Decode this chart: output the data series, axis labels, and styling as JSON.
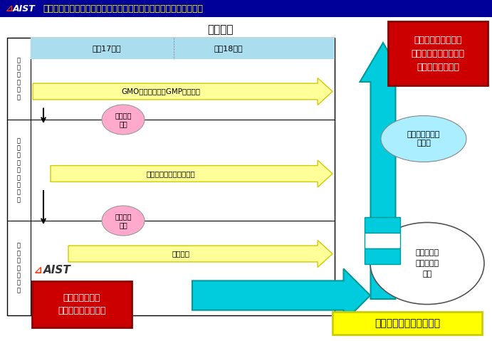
{
  "title_bar_color": "#000099",
  "title_text": "「医薬製剤原料生産のための密閉型組換え植物工場の開発」（２）",
  "title_text_color": "#FFFF00",
  "main_title": "研究計画",
  "bg_color": "#FFFFFF",
  "year_label1": "平成17年度",
  "year_label2": "平成18年度",
  "arrow1_text": "GMO封じ込め　　GMP基準対応",
  "arrow2_text": "人工環境下での育成技術",
  "arrow3_text": "実証試験",
  "ellipse1_text": "企業資金\n導入",
  "ellipse2_text": "企業資金\n導入",
  "red_box_text": "産総研産業変革\n研究イニシアティブ",
  "nat_label": "ナショナルプロジェクト",
  "red_box2_text": "植物機能を活用した\nものづくり産業の創出\n（産総研モデル）",
  "cyan_ellipse_text": "医薬製剤原料等\nの生産",
  "circle_text": "企業・大学\nと集中研究\n体制",
  "left_label1": "植\n物\n工\n場\n施\n設",
  "left_label2": "組\n換\nえ\n植\n物\n育\n成\n技\n術",
  "left_label3": "医\n薬\n品\n製\n造\n技\n術",
  "fig_w": 6.91,
  "fig_h": 4.79,
  "dpi": 100
}
